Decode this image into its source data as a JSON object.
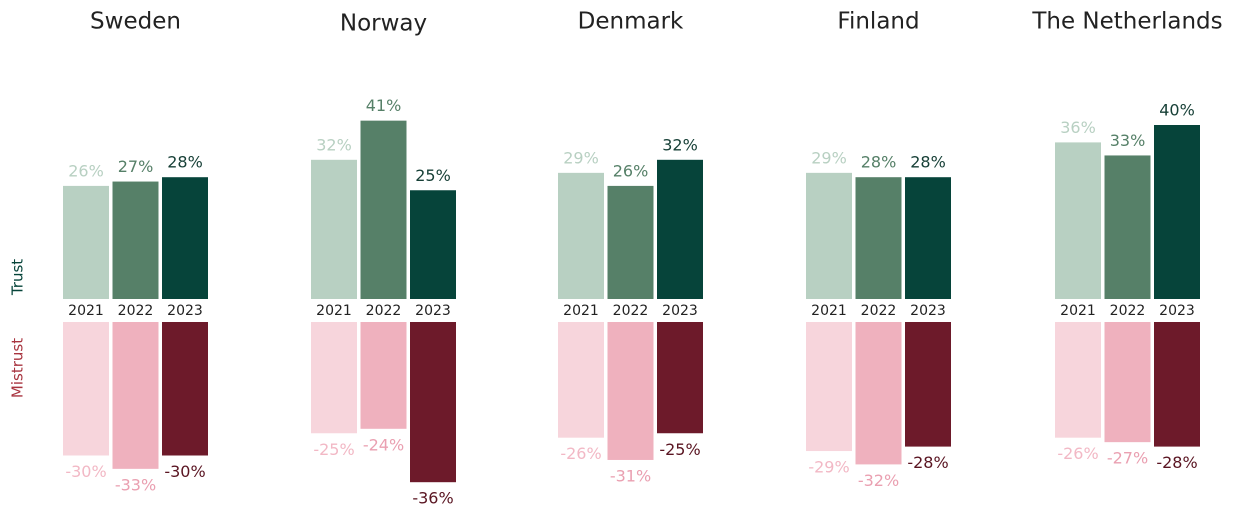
{
  "chart_data": {
    "type": "bar",
    "groups": [
      "Sweden",
      "Norway",
      "Denmark",
      "Finland",
      "The Netherlands"
    ],
    "categories": [
      "2021",
      "2022",
      "2023"
    ],
    "series": [
      {
        "name": "Trust",
        "colors": [
          "#b8d0c2",
          "#568068",
          "#06443a"
        ],
        "label_colors": [
          "#b8d0c2",
          "#568068",
          "#163f36"
        ],
        "values": [
          [
            26,
            27,
            28
          ],
          [
            32,
            41,
            25
          ],
          [
            29,
            26,
            32
          ],
          [
            29,
            28,
            28
          ],
          [
            36,
            33,
            40
          ]
        ],
        "value_labels": [
          [
            "26%",
            "27%",
            "28%"
          ],
          [
            "32%",
            "41%",
            "25%"
          ],
          [
            "29%",
            "26%",
            "32%"
          ],
          [
            "29%",
            "28%",
            "28%"
          ],
          [
            "36%",
            "33%",
            "40%"
          ]
        ]
      },
      {
        "name": "Mistrust",
        "colors": [
          "#f7d5dc",
          "#efb1be",
          "#6d1a2a"
        ],
        "label_colors": [
          "#f2b8c5",
          "#eaa0b1",
          "#5a1522"
        ],
        "values": [
          [
            -30,
            -33,
            -30
          ],
          [
            -25,
            -24,
            -36
          ],
          [
            -26,
            -31,
            -25
          ],
          [
            -29,
            -32,
            -28
          ],
          [
            -26,
            -27,
            -28
          ]
        ],
        "value_labels": [
          [
            "-30%",
            "-33%",
            "-30%"
          ],
          [
            "-25%",
            "-24%",
            "-36%"
          ],
          [
            "-26%",
            "-31%",
            "-25%"
          ],
          [
            "-29%",
            "-32%",
            "-28%"
          ],
          [
            "-26%",
            "-27%",
            "-28%"
          ]
        ]
      }
    ]
  }
}
